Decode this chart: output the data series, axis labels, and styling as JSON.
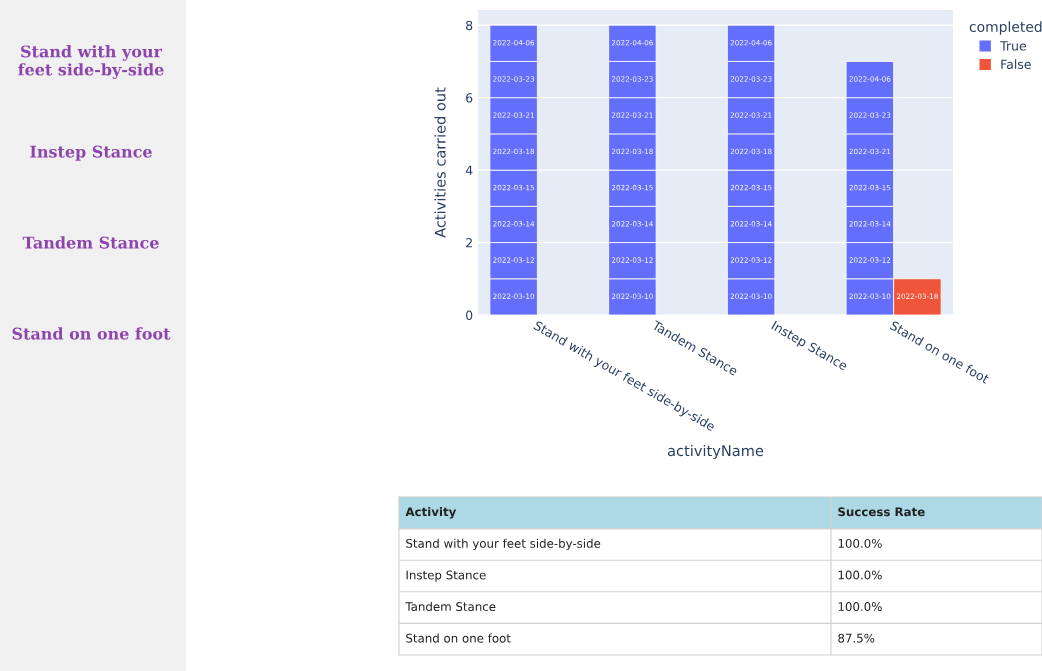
{
  "chart_data": [
    {
      "type": "other",
      "annotations": [
        "Stand with your feet side-by-side",
        "Instep Stance",
        "Tandem Stance",
        "Stand on one foot"
      ]
    },
    {
      "type": "bar",
      "xlabel": "activityName",
      "ylabel": "Activities carried out",
      "legend_title": "completed",
      "legend": "top right",
      "grid": "y",
      "categories": [
        "Stand with your feet side-by-side",
        "Tandem Stance",
        "Instep Stance",
        "Stand on one foot"
      ],
      "ylim": [
        0,
        8.42
      ],
      "yticks": [
        0,
        2,
        4,
        6,
        8
      ],
      "series": [
        {
          "name": "True",
          "color": "#636efa",
          "values": [
            1,
            1,
            1,
            1
          ],
          "base": [
            0,
            0,
            0,
            0
          ],
          "value_labels": [
            "2022-03-10",
            "2022-03-10",
            "2022-03-10",
            "2022-03-10"
          ]
        },
        {
          "color": "#636efa",
          "values": [
            1,
            1,
            1,
            1
          ],
          "base": [
            1,
            1,
            1,
            1
          ],
          "value_labels": [
            "2022-03-12",
            "2022-03-12",
            "2022-03-12",
            "2022-03-12"
          ]
        },
        {
          "color": "#636efa",
          "values": [
            1,
            1,
            1,
            1
          ],
          "base": [
            2,
            2,
            2,
            2
          ],
          "value_labels": [
            "2022-03-14",
            "2022-03-14",
            "2022-03-14",
            "2022-03-14"
          ]
        },
        {
          "color": "#636efa",
          "values": [
            1,
            1,
            1,
            1
          ],
          "base": [
            3,
            3,
            3,
            3
          ],
          "value_labels": [
            "2022-03-15",
            "2022-03-15",
            "2022-03-15",
            "2022-03-15"
          ]
        },
        {
          "color": "#636efa",
          "values": [
            1,
            1,
            1,
            1
          ],
          "base": [
            4,
            4,
            4,
            4
          ],
          "value_labels": [
            "2022-03-18",
            "2022-03-18",
            "2022-03-18",
            "2022-03-21"
          ]
        },
        {
          "color": "#636efa",
          "values": [
            1,
            1,
            1,
            1
          ],
          "base": [
            5,
            5,
            5,
            5
          ],
          "value_labels": [
            "2022-03-21",
            "2022-03-21",
            "2022-03-21",
            "2022-03-23"
          ]
        },
        {
          "color": "#636efa",
          "values": [
            1,
            1,
            1,
            1
          ],
          "base": [
            6,
            6,
            6,
            6
          ],
          "value_labels": [
            "2022-03-23",
            "2022-03-23",
            "2022-03-23",
            "2022-04-06"
          ]
        },
        {
          "color": "#636efa",
          "values": [
            1,
            1,
            1,
            null
          ],
          "base": [
            7,
            7,
            7,
            null
          ],
          "value_labels": [
            "2022-04-06",
            "2022-04-06",
            "2022-04-06",
            null
          ]
        },
        {
          "name": "False",
          "color": "#ef553b",
          "values": [
            null,
            null,
            null,
            1
          ],
          "base": [
            null,
            null,
            null,
            0
          ],
          "value_labels": [
            null,
            null,
            null,
            "2022-03-18"
          ]
        }
      ]
    },
    {
      "type": "other",
      "xlabel": "Activity",
      "ylabel": "Success Rate",
      "categories": [
        "Stand with your feet side-by-side",
        "Instep Stance",
        "Tandem Stance",
        "Stand on one foot"
      ],
      "value_labels": [
        "100.0%",
        "100.0%",
        "100.0%",
        "87.5%"
      ]
    }
  ]
}
